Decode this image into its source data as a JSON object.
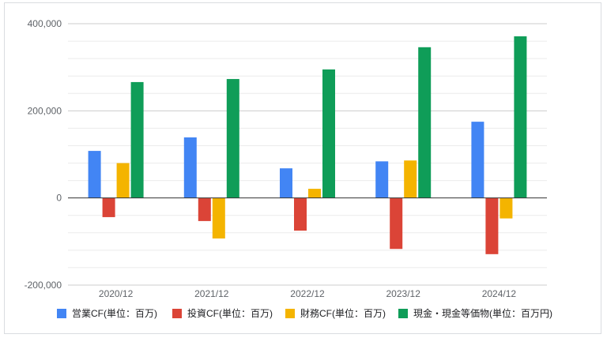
{
  "chart_data": {
    "type": "bar",
    "categories": [
      "2020/12",
      "2021/12",
      "2022/12",
      "2023/12",
      "2024/12"
    ],
    "series": [
      {
        "name": "営業CF(単位：百万)",
        "color": "#4285f4",
        "values": [
          108000,
          139000,
          68000,
          84000,
          175000
        ]
      },
      {
        "name": "投資CF(単位：百万)",
        "color": "#db4437",
        "values": [
          -44000,
          -53000,
          -75000,
          -117000,
          -129000
        ]
      },
      {
        "name": "財務CF(単位：百万)",
        "color": "#f4b400",
        "values": [
          80000,
          -93000,
          21000,
          86000,
          -47000
        ]
      },
      {
        "name": "現金・現金等価物(単位：百万円)",
        "color": "#0f9d58",
        "values": [
          266000,
          273000,
          295000,
          346000,
          371000
        ]
      }
    ],
    "ylim": [
      -200000,
      400000
    ],
    "yticks": [
      400000,
      200000,
      0,
      -200000
    ],
    "ytick_labels": [
      "400,000",
      "200,000",
      "0",
      "-200,000"
    ],
    "grid": true,
    "minor_gridlines_per_major": 4,
    "legend_position": "bottom",
    "title": "",
    "xlabel": "",
    "ylabel": ""
  }
}
